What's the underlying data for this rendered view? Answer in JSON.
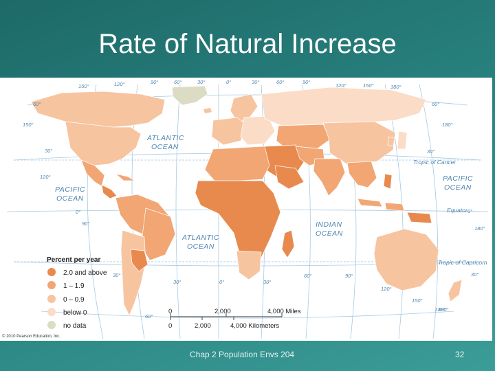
{
  "slide": {
    "title": "Rate of Natural Increase",
    "footer_text": "Chap 2 Population Envs 204",
    "page_number": "32"
  },
  "map": {
    "copyright": "© 2010 Pearson Education, Inc.",
    "oceans": {
      "atlantic_north": [
        "ATLANTIC",
        "OCEAN"
      ],
      "atlantic_south": [
        "ATLANTIC",
        "OCEAN"
      ],
      "pacific_east": [
        "PACIFIC",
        "OCEAN"
      ],
      "pacific_west": [
        "PACIFIC",
        "OCEAN"
      ],
      "indian": [
        "INDIAN",
        "OCEAN"
      ]
    },
    "lines": {
      "tropic_cancer": "Tropic of Cancer",
      "equator": "Equator",
      "tropic_capricorn": "Tropic of Capricorn"
    },
    "degree_labels": {
      "top": [
        "150°",
        "120°",
        "90°",
        "60°",
        "30°",
        "0°",
        "30°",
        "60°",
        "90°",
        "120°",
        "150°",
        "180°"
      ],
      "left": [
        "60°",
        "150°",
        "30°",
        "120°",
        "0°",
        "90°"
      ],
      "right": [
        "60°",
        "180°",
        "30°",
        "0°",
        "180°",
        "30°",
        "180°"
      ],
      "bottom": [
        "30°",
        "60°",
        "30°",
        "0°",
        "30°",
        "60°",
        "90°",
        "120°",
        "150°",
        "180°"
      ]
    },
    "legend": {
      "title": "Percent per year",
      "items": [
        {
          "label": "2.0 and above",
          "color": "#e88a4e"
        },
        {
          "label": "1 – 1.9",
          "color": "#f1a674"
        },
        {
          "label": "0 – 0.9",
          "color": "#f7c4a0"
        },
        {
          "label": "below 0",
          "color": "#fbdcc6"
        },
        {
          "label": "no data",
          "color": "#dcdcc4"
        }
      ]
    },
    "scale": {
      "miles": [
        "0",
        "2,000",
        "4,000 Miles"
      ],
      "km": [
        "0",
        "2,000",
        "4,000 Kilometers"
      ]
    }
  }
}
